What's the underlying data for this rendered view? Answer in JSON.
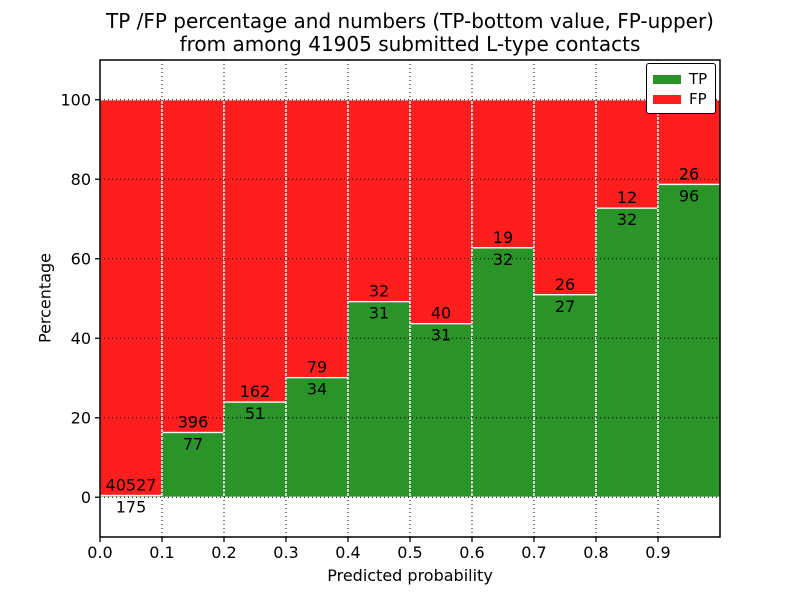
{
  "title": {
    "line1": "TP /FP percentage and numbers (TP-bottom value, FP-upper)",
    "line2": "from among 41905 submitted L-type contacts"
  },
  "axes": {
    "xlabel": "Predicted probability",
    "ylabel": "Percentage"
  },
  "legend": {
    "entries": [
      {
        "label": "TP",
        "color_key": "tp"
      },
      {
        "label": "FP",
        "color_key": "fp"
      }
    ]
  },
  "colors": {
    "tp": "#2a9428",
    "fp": "#fe1e1e",
    "axis": "#000000",
    "grid": "#000000",
    "bar_edge": "#ffffff",
    "background": "#ffffff",
    "text": "#000000"
  },
  "chart_data": {
    "type": "bar",
    "stacked": true,
    "title": "TP /FP percentage and numbers (TP-bottom value, FP-upper) from among 41905 submitted L-type contacts",
    "xlabel": "Predicted probability",
    "ylabel": "Percentage",
    "total_contacts": 41905,
    "bins": [
      0.0,
      0.1,
      0.2,
      0.3,
      0.4,
      0.5,
      0.6,
      0.7,
      0.8,
      0.9
    ],
    "bin_width": 0.1,
    "series": [
      {
        "name": "TP",
        "counts": [
          175,
          77,
          51,
          34,
          31,
          31,
          32,
          27,
          32,
          96
        ]
      },
      {
        "name": "FP",
        "counts": [
          40527,
          396,
          162,
          79,
          32,
          40,
          19,
          26,
          12,
          26
        ]
      }
    ],
    "tp_percent": [
      0.43,
      16.28,
      23.94,
      30.09,
      49.21,
      43.66,
      62.75,
      50.94,
      72.73,
      78.69
    ],
    "xlim": [
      0.0,
      1.0
    ],
    "ylim": [
      -10,
      110
    ],
    "xticks": [
      0.0,
      0.1,
      0.2,
      0.3,
      0.4,
      0.5,
      0.6,
      0.7,
      0.8,
      0.9
    ],
    "xtick_labels": [
      "0.0",
      "0.1",
      "0.2",
      "0.3",
      "0.4",
      "0.5",
      "0.6",
      "0.7",
      "0.8",
      "0.9"
    ],
    "yticks": [
      0,
      20,
      40,
      60,
      80,
      100
    ],
    "ytick_labels": [
      "0",
      "20",
      "40",
      "60",
      "80",
      "100"
    ],
    "grid": {
      "style": "dotted",
      "axes": "both",
      "on": true
    },
    "legend_position": "upper right"
  }
}
